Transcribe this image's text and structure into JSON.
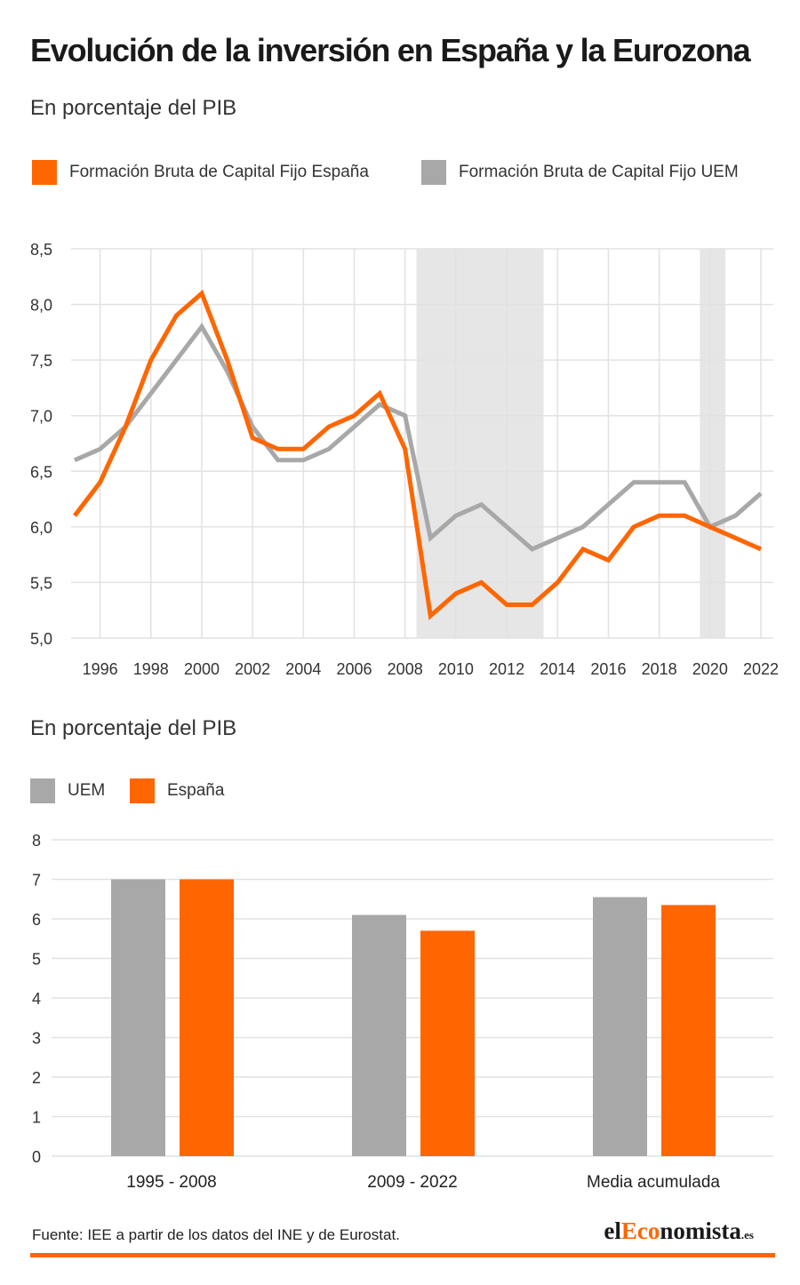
{
  "title": "Evolución de la inversión en España y la Eurozona",
  "colors": {
    "spain": "#ff6600",
    "uem": "#a8a8a8",
    "shade": "#e6e6e6",
    "grid": "#e2e2e2"
  },
  "line_chart": {
    "subtitle": "En porcentaje del PIB",
    "legend": {
      "spain": "Formación Bruta de Capital Fijo España",
      "uem": "Formación Bruta de Capital Fijo UEM"
    }
  },
  "bar_chart": {
    "subtitle": "En porcentaje del PIB",
    "legend": {
      "uem": "UEM",
      "spain": "España"
    }
  },
  "footer": {
    "source": "Fuente: IEE a partir de los datos del INE y de Eurostat.",
    "brand_prefix": "el",
    "brand_accent": "Eco",
    "brand_suffix": "nomista",
    "brand_tld": ".es"
  },
  "chart_data": [
    {
      "type": "line",
      "title": "",
      "subtitle": "En porcentaje del PIB",
      "xlabel": "",
      "ylabel": "",
      "ylim": [
        5.0,
        8.5
      ],
      "yticks": [
        "5,0",
        "5,5",
        "6,0",
        "6,5",
        "7,0",
        "7,5",
        "8,0",
        "8,5"
      ],
      "xticks": [
        "1996",
        "1998",
        "2000",
        "2002",
        "2004",
        "2006",
        "2008",
        "2010",
        "2012",
        "2014",
        "2016",
        "2018",
        "2020",
        "2022"
      ],
      "x": [
        1995,
        1996,
        1997,
        1998,
        1999,
        2000,
        2001,
        2002,
        2003,
        2004,
        2005,
        2006,
        2007,
        2008,
        2009,
        2010,
        2011,
        2012,
        2013,
        2014,
        2015,
        2016,
        2017,
        2018,
        2019,
        2020,
        2021,
        2022
      ],
      "shaded_periods": [
        [
          2008.45,
          2013.45
        ],
        [
          2019.6,
          2020.6
        ]
      ],
      "grid": true,
      "legend_position": "top",
      "series": [
        {
          "name": "Formación Bruta de Capital Fijo España",
          "color": "#ff6600",
          "values": [
            6.1,
            6.4,
            6.9,
            7.5,
            7.9,
            8.1,
            7.5,
            6.8,
            6.7,
            6.7,
            6.9,
            7.0,
            7.2,
            6.7,
            5.2,
            5.4,
            5.5,
            5.3,
            5.3,
            5.5,
            5.8,
            5.7,
            6.0,
            6.1,
            6.1,
            6.0,
            5.9,
            5.8
          ]
        },
        {
          "name": "Formación Bruta de Capital Fijo UEM",
          "color": "#a8a8a8",
          "values": [
            6.6,
            6.7,
            6.9,
            7.2,
            7.5,
            7.8,
            7.4,
            6.9,
            6.6,
            6.6,
            6.7,
            6.9,
            7.1,
            7.0,
            5.9,
            6.1,
            6.2,
            6.0,
            5.8,
            5.9,
            6.0,
            6.2,
            6.4,
            6.4,
            6.4,
            6.0,
            6.1,
            6.3
          ]
        }
      ]
    },
    {
      "type": "bar",
      "title": "",
      "subtitle": "En porcentaje del PIB",
      "xlabel": "",
      "ylabel": "",
      "ylim": [
        0,
        8
      ],
      "yticks": [
        "0",
        "1",
        "2",
        "3",
        "4",
        "5",
        "6",
        "7",
        "8"
      ],
      "categories": [
        "1995 - 2008",
        "2009 - 2022",
        "Media acumulada"
      ],
      "grid": true,
      "legend_position": "top-left",
      "series": [
        {
          "name": "UEM",
          "color": "#a8a8a8",
          "values": [
            7.0,
            6.1,
            6.55
          ]
        },
        {
          "name": "España",
          "color": "#ff6600",
          "values": [
            7.0,
            5.7,
            6.35
          ]
        }
      ]
    }
  ]
}
